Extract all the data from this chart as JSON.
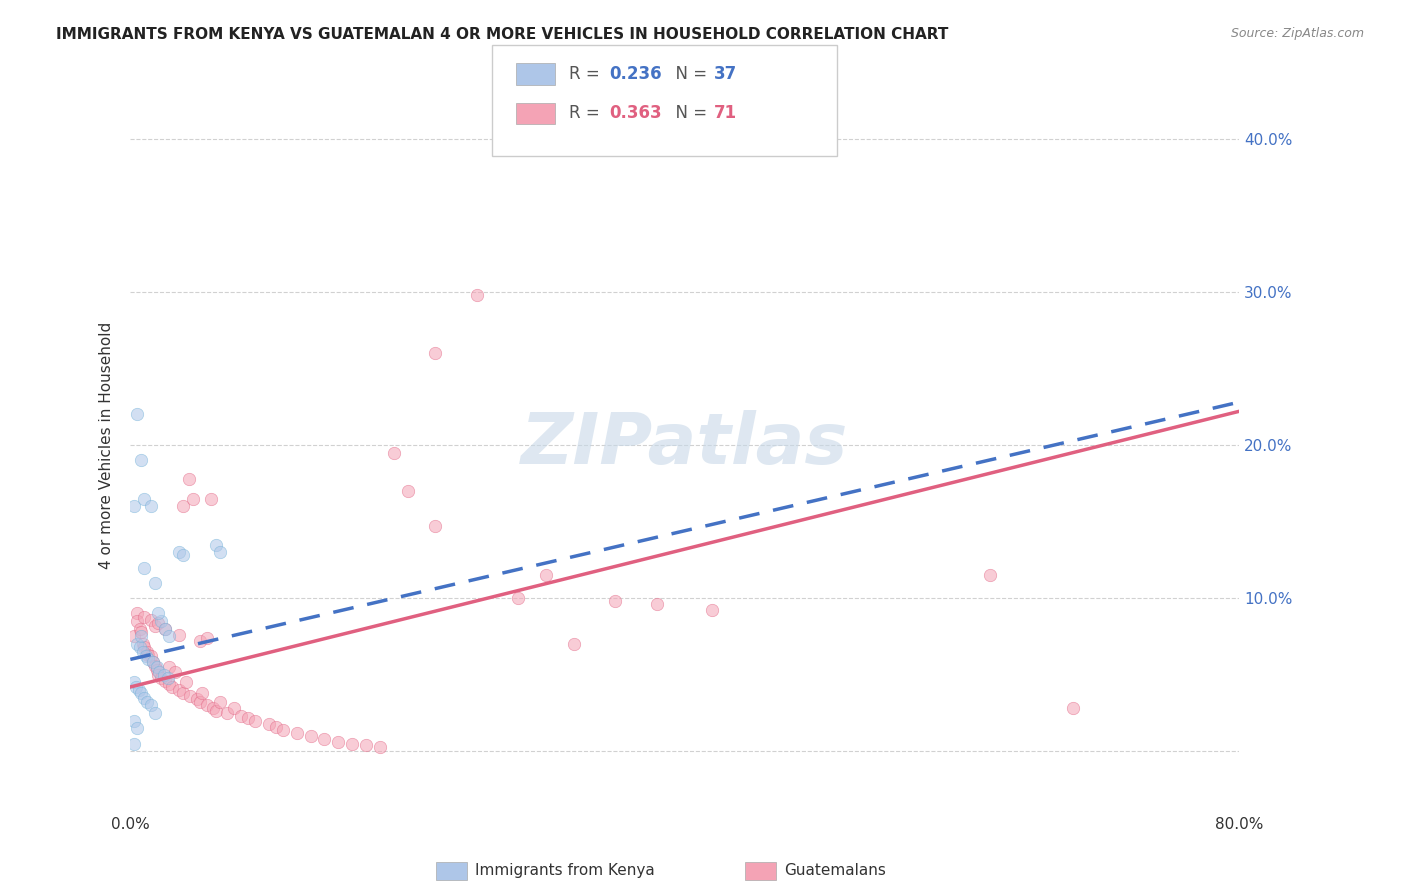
{
  "title": "IMMIGRANTS FROM KENYA VS GUATEMALAN 4 OR MORE VEHICLES IN HOUSEHOLD CORRELATION CHART",
  "source": "Source: ZipAtlas.com",
  "ylabel": "4 or more Vehicles in Household",
  "xlim": [
    0.0,
    0.8
  ],
  "ylim": [
    -0.04,
    0.44
  ],
  "kenya_r": "0.236",
  "kenya_n": "37",
  "guatemalan_r": "0.363",
  "guatemalan_n": "71",
  "kenya_scatter_x": [
    0.003,
    0.003,
    0.003,
    0.004,
    0.005,
    0.005,
    0.006,
    0.007,
    0.008,
    0.008,
    0.009,
    0.01,
    0.01,
    0.011,
    0.012,
    0.013,
    0.015,
    0.016,
    0.018,
    0.019,
    0.021,
    0.022,
    0.024,
    0.025,
    0.027,
    0.028,
    0.035,
    0.038,
    0.062,
    0.065,
    0.003,
    0.005,
    0.008,
    0.01,
    0.018,
    0.02,
    0.015
  ],
  "kenya_scatter_y": [
    0.02,
    0.045,
    0.16,
    0.042,
    0.22,
    0.07,
    0.04,
    0.068,
    0.038,
    0.19,
    0.065,
    0.035,
    0.165,
    0.062,
    0.032,
    0.06,
    0.03,
    0.058,
    0.025,
    0.055,
    0.052,
    0.085,
    0.05,
    0.08,
    0.048,
    0.075,
    0.13,
    0.128,
    0.135,
    0.13,
    0.005,
    0.015,
    0.075,
    0.12,
    0.11,
    0.09,
    0.16
  ],
  "guatemalan_scatter_x": [
    0.003,
    0.005,
    0.005,
    0.007,
    0.008,
    0.009,
    0.01,
    0.01,
    0.012,
    0.013,
    0.015,
    0.015,
    0.016,
    0.018,
    0.018,
    0.019,
    0.02,
    0.02,
    0.022,
    0.025,
    0.025,
    0.028,
    0.028,
    0.03,
    0.032,
    0.035,
    0.035,
    0.038,
    0.038,
    0.04,
    0.042,
    0.043,
    0.045,
    0.048,
    0.05,
    0.05,
    0.052,
    0.055,
    0.055,
    0.058,
    0.06,
    0.062,
    0.065,
    0.07,
    0.075,
    0.08,
    0.085,
    0.09,
    0.1,
    0.105,
    0.11,
    0.12,
    0.13,
    0.14,
    0.15,
    0.16,
    0.17,
    0.18,
    0.19,
    0.2,
    0.22,
    0.25,
    0.28,
    0.3,
    0.32,
    0.35,
    0.38,
    0.42,
    0.62,
    0.68,
    0.22
  ],
  "guatemalan_scatter_y": [
    0.075,
    0.09,
    0.085,
    0.08,
    0.078,
    0.07,
    0.088,
    0.068,
    0.065,
    0.063,
    0.086,
    0.062,
    0.058,
    0.082,
    0.056,
    0.053,
    0.084,
    0.05,
    0.048,
    0.08,
    0.046,
    0.055,
    0.044,
    0.042,
    0.052,
    0.076,
    0.04,
    0.038,
    0.16,
    0.045,
    0.178,
    0.036,
    0.165,
    0.034,
    0.072,
    0.032,
    0.038,
    0.074,
    0.03,
    0.165,
    0.028,
    0.026,
    0.032,
    0.025,
    0.028,
    0.023,
    0.022,
    0.02,
    0.018,
    0.016,
    0.014,
    0.012,
    0.01,
    0.008,
    0.006,
    0.005,
    0.004,
    0.003,
    0.195,
    0.17,
    0.147,
    0.298,
    0.1,
    0.115,
    0.07,
    0.098,
    0.096,
    0.092,
    0.115,
    0.028,
    0.26
  ],
  "kenya_line_intercept": 0.06,
  "kenya_line_slope": 0.21,
  "guatemalan_line_intercept": 0.042,
  "guatemalan_line_slope": 0.225,
  "watermark_text": "ZIPatlas",
  "scatter_alpha": 0.55,
  "scatter_size": 80,
  "kenya_color": "#aec6e8",
  "kenya_edge_color": "#6baed6",
  "guatemalan_color": "#f4a3b5",
  "guatemalan_edge_color": "#e06080",
  "kenya_line_color": "#4472c4",
  "guatemalan_line_color": "#e06080",
  "grid_color": "#cccccc",
  "background_color": "#ffffff",
  "title_fontsize": 11,
  "axis_label_fontsize": 11,
  "tick_fontsize": 11,
  "watermark_color": "#c8d8e8",
  "watermark_fontsize": 52,
  "legend_label_kenya": "Immigrants from Kenya",
  "legend_label_guatemalan": "Guatemalans"
}
